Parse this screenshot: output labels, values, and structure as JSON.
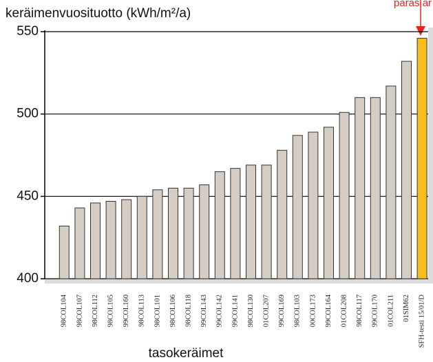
{
  "chart_data": {
    "type": "bar",
    "title": "keräimenvuosituotto (kWh/m²/a)",
    "x_label": "tasokeräimet",
    "annotation": "paras ar",
    "categories": [
      "98COL104",
      "98COL107",
      "98COL112",
      "98COL105",
      "99COL160",
      "98COL113",
      "98COL101",
      "98COL106",
      "98COL118",
      "99COL143",
      "99COL142",
      "99COL141",
      "98COL130",
      "01COL207",
      "99COL169",
      "98COL103",
      "00COL173",
      "99COL164",
      "01COL208",
      "98COL117",
      "99COL170",
      "01COL211",
      "01SIM62",
      "SFH-testi 15/01/D"
    ],
    "values": [
      432,
      443,
      446,
      447,
      448,
      450,
      454,
      455,
      455,
      457,
      465,
      467,
      469,
      469,
      478,
      487,
      489,
      492,
      501,
      510,
      510,
      517,
      532,
      546
    ],
    "colors": [
      "#d5ccc4",
      "#d5ccc4",
      "#d5ccc4",
      "#d5ccc4",
      "#d5ccc4",
      "#d5ccc4",
      "#d5ccc4",
      "#d5ccc4",
      "#d5ccc4",
      "#d5ccc4",
      "#d5ccc4",
      "#d5ccc4",
      "#d5ccc4",
      "#d5ccc4",
      "#d5ccc4",
      "#d5ccc4",
      "#d5ccc4",
      "#d5ccc4",
      "#d5ccc4",
      "#d5ccc4",
      "#d5ccc4",
      "#d5ccc4",
      "#d5ccc4",
      "#f6bd1c"
    ],
    "ylim": [
      400,
      550
    ],
    "yticks": [
      400,
      450,
      500,
      550
    ],
    "grid": true
  }
}
